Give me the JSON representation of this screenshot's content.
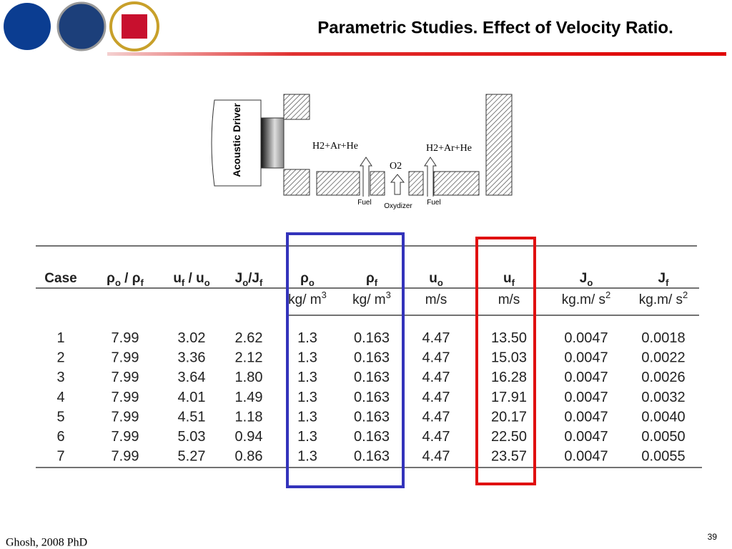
{
  "header": {
    "title": "Parametric Studies. Effect of Velocity Ratio."
  },
  "diagram": {
    "driver": "Acoustic Driver",
    "left_flow": "H2+Ar+He",
    "right_flow": "H2+Ar+He",
    "center_flow": "O2",
    "left_inlet": "Fuel",
    "center_inlet": "Oxydizer",
    "right_inlet": "Fuel"
  },
  "table": {
    "headers": [
      [
        "Case"
      ],
      [
        "ρ",
        "o",
        " / ρ",
        "f"
      ],
      [
        "u",
        "f",
        " / u",
        "o"
      ],
      [
        "J",
        "o",
        "/J",
        "f"
      ],
      [
        "ρ",
        "o"
      ],
      [
        "ρ",
        "f"
      ],
      [
        "u",
        "o"
      ],
      [
        "u",
        "f"
      ],
      [
        "J",
        "o"
      ],
      [
        "J",
        "f"
      ]
    ],
    "units": [
      null,
      null,
      null,
      null,
      [
        "kg/ m",
        "3"
      ],
      [
        "kg/ m",
        "3"
      ],
      [
        "m/s"
      ],
      [
        "m/s"
      ],
      [
        "kg.m/ s",
        "2"
      ],
      [
        "kg.m/ s",
        "2"
      ]
    ],
    "rows": [
      [
        "1",
        "7.99",
        "3.02",
        "2.62",
        "1.3",
        "0.163",
        "4.47",
        "13.50",
        "0.0047",
        "0.0018"
      ],
      [
        "2",
        "7.99",
        "3.36",
        "2.12",
        "1.3",
        "0.163",
        "4.47",
        "15.03",
        "0.0047",
        "0.0022"
      ],
      [
        "3",
        "7.99",
        "3.64",
        "1.80",
        "1.3",
        "0.163",
        "4.47",
        "16.28",
        "0.0047",
        "0.0026"
      ],
      [
        "4",
        "7.99",
        "4.01",
        "1.49",
        "1.3",
        "0.163",
        "4.47",
        "17.91",
        "0.0047",
        "0.0032"
      ],
      [
        "5",
        "7.99",
        "4.51",
        "1.18",
        "1.3",
        "0.163",
        "4.47",
        "20.17",
        "0.0047",
        "0.0040"
      ],
      [
        "6",
        "7.99",
        "5.03",
        "0.94",
        "1.3",
        "0.163",
        "4.47",
        "22.50",
        "0.0047",
        "0.0050"
      ],
      [
        "7",
        "7.99",
        "5.27",
        "0.86",
        "1.3",
        "0.163",
        "4.47",
        "23.57",
        "0.0047",
        "0.0055"
      ]
    ]
  },
  "footer": {
    "author": "Ghosh, 2008 PhD",
    "page": "39"
  }
}
